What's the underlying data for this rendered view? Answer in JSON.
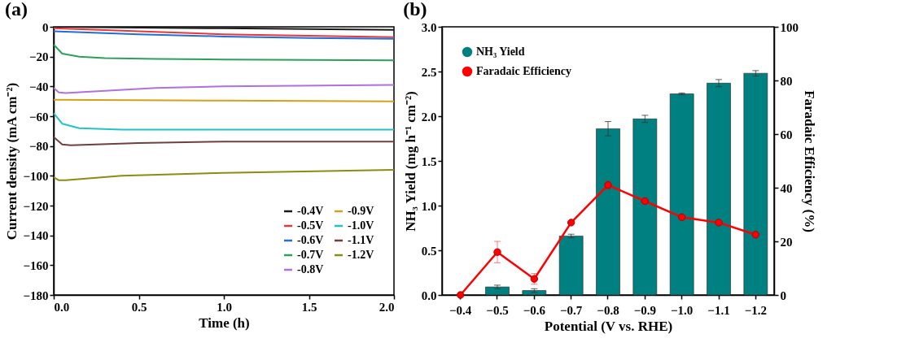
{
  "chart_data": [
    {
      "type": "line",
      "title": "(a)",
      "xlabel": "Time (h)",
      "ylabel": "Current density (mA cm⁻²)",
      "xlim": [
        0,
        2
      ],
      "xticks": [
        {
          "value": 0,
          "label": "0.0"
        },
        {
          "value": 0.5,
          "label": "0.5"
        },
        {
          "value": 1,
          "label": "1.0"
        },
        {
          "value": 1.5,
          "label": "1.5"
        },
        {
          "value": 2,
          "label": "2.0"
        }
      ],
      "ylim": [
        -180,
        0
      ],
      "yticks": [
        -180,
        -160,
        -140,
        -120,
        -100,
        -80,
        -60,
        -40,
        -20,
        0
      ],
      "legend": "bottom right",
      "grid": false,
      "line_style": "solid",
      "series": [
        {
          "name": "-0.4V",
          "color": "#1a1a1a",
          "x": [
            0,
            0.5,
            1,
            1.5,
            2
          ],
          "values": [
            0,
            -0.5,
            -1,
            -1.5,
            -2
          ]
        },
        {
          "name": "-0.5V",
          "color": "#e8383d",
          "x": [
            0,
            0.5,
            1,
            1.5,
            2
          ],
          "values": [
            -1,
            -3,
            -5,
            -6,
            -7
          ]
        },
        {
          "name": "-0.6V",
          "color": "#1f6fd6",
          "x": [
            0,
            0.5,
            1,
            1.5,
            2
          ],
          "values": [
            -3,
            -5,
            -6.5,
            -7.5,
            -8
          ]
        },
        {
          "name": "-0.7V",
          "color": "#2ca05a",
          "x": [
            0,
            0.05,
            0.15,
            0.3,
            0.6,
            1,
            2
          ],
          "values": [
            -12,
            -18,
            -20,
            -21,
            -21.5,
            -22,
            -22.5
          ]
        },
        {
          "name": "-0.8V",
          "color": "#b070e0",
          "x": [
            0,
            0.03,
            0.07,
            0.3,
            0.6,
            1,
            2
          ],
          "values": [
            -41,
            -44,
            -44.5,
            -43,
            -41,
            -40,
            -39
          ]
        },
        {
          "name": "-0.9V",
          "color": "#d4a017",
          "x": [
            0,
            1,
            2
          ],
          "values": [
            -49,
            -49.5,
            -50
          ]
        },
        {
          "name": "-1.0V",
          "color": "#20c4c8",
          "x": [
            0,
            0.05,
            0.15,
            0.4,
            1,
            2
          ],
          "values": [
            -58,
            -65,
            -68,
            -69,
            -69,
            -69
          ]
        },
        {
          "name": "-1.1V",
          "color": "#704040",
          "x": [
            0,
            0.05,
            0.1,
            0.5,
            1,
            2
          ],
          "values": [
            -74,
            -79,
            -79.5,
            -78,
            -77,
            -77
          ]
        },
        {
          "name": "-1.2V",
          "color": "#8c8c10",
          "x": [
            0,
            0.03,
            0.07,
            0.4,
            1,
            2
          ],
          "values": [
            -101,
            -103,
            -103,
            -100,
            -98,
            -96
          ]
        }
      ]
    },
    {
      "type": "bar",
      "title": "(b)",
      "xlabel": "Potential (V vs. RHE)",
      "ylabel": "NH₃ Yield (mg h⁻¹ cm⁻²)",
      "y2label": "Faradaic Efficiency (%)",
      "categories": [
        "−0.4",
        "−0.5",
        "−0.6",
        "−0.7",
        "−0.8",
        "−0.9",
        "−1.0",
        "−1.1",
        "−1.2"
      ],
      "ylim": [
        0,
        3
      ],
      "yticks": [
        {
          "value": 0,
          "label": "0.0"
        },
        0.5,
        {
          "value": 1,
          "label": "1.0"
        },
        1.5,
        {
          "value": 2,
          "label": "2.0"
        },
        2.5,
        {
          "value": 3,
          "label": "3.0"
        }
      ],
      "y2lim": [
        0,
        100
      ],
      "y2ticks": [
        0,
        20,
        40,
        60,
        80,
        100
      ],
      "legend": "top left",
      "grid": false,
      "series": [
        {
          "name": "NH₃ Yield",
          "type": "bar",
          "color": "#008080",
          "values": [
            null,
            0.09,
            0.05,
            0.66,
            1.86,
            1.97,
            2.25,
            2.37,
            2.48
          ],
          "errors": [
            null,
            0.02,
            0.02,
            0.02,
            0.08,
            0.04,
            0.01,
            0.04,
            0.03
          ]
        },
        {
          "name": "Faradaic Efficiency",
          "type": "line",
          "axis": "y2",
          "color": "#ff0000",
          "marker": "circle",
          "values": [
            0,
            16,
            6,
            27,
            41,
            35,
            29,
            27,
            22.5
          ],
          "errors": [
            null,
            4,
            2,
            null,
            1.5,
            null,
            null,
            null,
            null
          ]
        }
      ]
    }
  ]
}
